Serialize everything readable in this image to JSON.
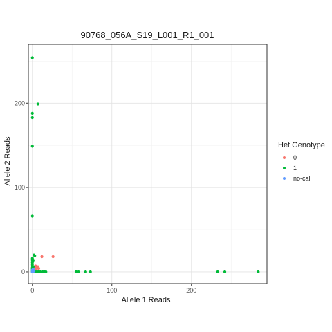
{
  "chart_data": {
    "type": "scatter",
    "title": "90768_056A_S19_L001_R1_001",
    "xlabel": "Allele 1 Reads",
    "ylabel": "Allele 2 Reads",
    "xlim": [
      -5,
      295
    ],
    "ylim": [
      -14,
      270
    ],
    "x_ticks": [
      0,
      100,
      200
    ],
    "y_ticks": [
      0,
      100,
      200
    ],
    "grid": true,
    "legend": {
      "title": "Het Genotype",
      "position": "right"
    },
    "series": [
      {
        "name": "0",
        "color": "#F8766D",
        "points": [
          [
            1,
            4
          ],
          [
            2,
            5
          ],
          [
            3,
            6
          ],
          [
            4,
            7
          ],
          [
            5,
            6
          ],
          [
            6,
            5
          ],
          [
            7,
            6
          ],
          [
            8,
            4
          ],
          [
            3,
            3
          ],
          [
            5,
            2
          ],
          [
            2,
            2
          ],
          [
            12,
            18
          ],
          [
            26,
            18
          ]
        ]
      },
      {
        "name": "1",
        "color": "#00BA38",
        "points": [
          [
            0,
            254
          ],
          [
            0,
            188
          ],
          [
            0,
            183
          ],
          [
            7,
            199
          ],
          [
            0,
            149
          ],
          [
            0,
            66
          ],
          [
            2,
            20
          ],
          [
            3,
            19
          ],
          [
            0,
            16
          ],
          [
            0,
            14
          ],
          [
            1,
            13
          ],
          [
            0,
            11
          ],
          [
            0,
            9
          ],
          [
            0,
            7
          ],
          [
            1,
            6
          ],
          [
            0,
            5
          ],
          [
            0,
            4
          ],
          [
            0,
            3
          ],
          [
            0,
            2
          ],
          [
            0,
            1
          ],
          [
            0,
            0
          ],
          [
            2,
            0
          ],
          [
            4,
            0
          ],
          [
            6,
            0
          ],
          [
            8,
            0
          ],
          [
            10,
            0
          ],
          [
            13,
            0
          ],
          [
            15,
            0
          ],
          [
            17,
            0
          ],
          [
            55,
            0
          ],
          [
            58,
            0
          ],
          [
            67,
            0
          ],
          [
            73,
            0
          ],
          [
            233,
            0
          ],
          [
            242,
            0
          ],
          [
            284,
            0
          ]
        ]
      },
      {
        "name": "no-call",
        "color": "#619CFF",
        "points": [
          [
            0,
            2
          ],
          [
            1,
            1
          ],
          [
            1,
            3
          ],
          [
            0,
            0
          ],
          [
            2,
            1
          ]
        ]
      }
    ]
  }
}
